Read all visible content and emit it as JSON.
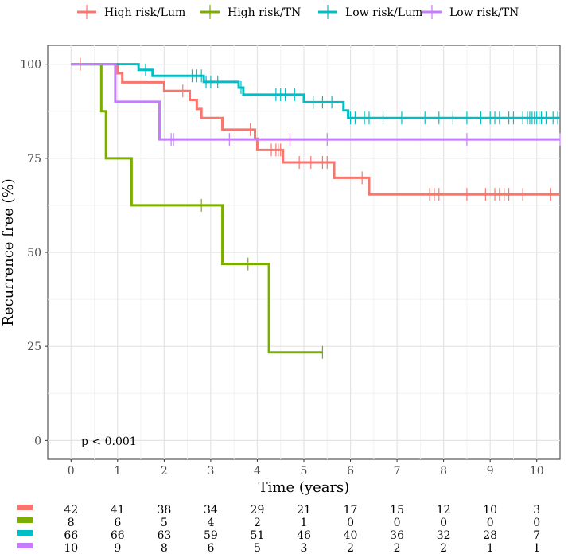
{
  "chart_data": {
    "type": "line",
    "subtype": "kaplan-meier",
    "title": "",
    "xlabel": "Time (years)",
    "ylabel": "Recurrence free (%)",
    "xlim": [
      -0.5,
      10.5
    ],
    "ylim": [
      -5,
      105
    ],
    "xticks": [
      0,
      1,
      2,
      3,
      4,
      5,
      6,
      7,
      8,
      9,
      10
    ],
    "yticks": [
      0,
      25,
      50,
      75,
      100
    ],
    "grid": true,
    "legend_position": "top",
    "annotation": "p < 0.001",
    "series": [
      {
        "name": "High risk/Lum",
        "color": "#F8766D",
        "steps": [
          [
            0,
            100
          ],
          [
            1.0,
            97.6
          ],
          [
            1.1,
            95.2
          ],
          [
            2.0,
            92.9
          ],
          [
            2.55,
            90.5
          ],
          [
            2.7,
            88.1
          ],
          [
            2.8,
            85.7
          ],
          [
            3.25,
            82.6
          ],
          [
            3.95,
            80.2
          ],
          [
            4.0,
            77.2
          ],
          [
            4.55,
            73.9
          ],
          [
            5.65,
            69.8
          ],
          [
            6.4,
            65.4
          ],
          [
            10.5,
            65.4
          ]
        ],
        "censor_times": [
          0.2,
          2.4,
          3.85,
          4.3,
          4.4,
          4.45,
          4.5,
          4.9,
          5.15,
          5.4,
          5.5,
          6.25,
          7.7,
          7.8,
          7.9,
          8.5,
          8.9,
          9.1,
          9.2,
          9.3,
          9.4,
          9.7,
          10.3
        ]
      },
      {
        "name": "High risk/TN",
        "color": "#7CAE00",
        "steps": [
          [
            0,
            100
          ],
          [
            0.65,
            87.5
          ],
          [
            0.75,
            75.0
          ],
          [
            1.3,
            62.5
          ],
          [
            3.25,
            46.9
          ],
          [
            4.25,
            23.4
          ],
          [
            5.4,
            23.4
          ]
        ],
        "censor_times": [
          2.8,
          3.8,
          5.4
        ]
      },
      {
        "name": "Low risk/Lum",
        "color": "#00BFC4",
        "steps": [
          [
            0,
            100
          ],
          [
            1.45,
            98.5
          ],
          [
            1.75,
            96.9
          ],
          [
            2.85,
            95.3
          ],
          [
            3.6,
            93.8
          ],
          [
            3.7,
            91.9
          ],
          [
            5.0,
            89.9
          ],
          [
            5.85,
            87.7
          ],
          [
            5.95,
            85.7
          ],
          [
            10.5,
            85.7
          ]
        ],
        "censor_times": [
          1.6,
          2.6,
          2.7,
          2.8,
          2.9,
          3.0,
          3.15,
          3.65,
          4.4,
          4.5,
          4.6,
          4.8,
          5.2,
          5.4,
          5.6,
          6.0,
          6.1,
          6.3,
          6.4,
          6.7,
          7.1,
          7.6,
          7.9,
          8.2,
          8.5,
          8.8,
          9.0,
          9.1,
          9.2,
          9.4,
          9.5,
          9.7,
          9.8,
          9.85,
          9.9,
          9.95,
          10.0,
          10.05,
          10.1,
          10.2,
          10.35,
          10.45
        ]
      },
      {
        "name": "Low risk/TN",
        "color": "#C77CFF",
        "steps": [
          [
            0,
            100
          ],
          [
            0.95,
            90.0
          ],
          [
            1.9,
            80.0
          ],
          [
            10.5,
            80.0
          ]
        ],
        "censor_times": [
          2.15,
          2.2,
          3.4,
          4.7,
          5.5,
          8.5,
          10.5
        ]
      }
    ],
    "risk_table": {
      "times": [
        0,
        1,
        2,
        3,
        4,
        5,
        6,
        7,
        8,
        9,
        10
      ],
      "rows": [
        {
          "name": "High risk/Lum",
          "color": "#F8766D",
          "values": [
            42,
            41,
            38,
            34,
            29,
            21,
            17,
            15,
            12,
            10,
            3
          ]
        },
        {
          "name": "High risk/TN",
          "color": "#7CAE00",
          "values": [
            8,
            6,
            5,
            4,
            2,
            1,
            0,
            0,
            0,
            0,
            0
          ]
        },
        {
          "name": "Low risk/Lum",
          "color": "#00BFC4",
          "values": [
            66,
            66,
            63,
            59,
            51,
            46,
            40,
            36,
            32,
            28,
            7
          ]
        },
        {
          "name": "Low risk/TN",
          "color": "#C77CFF",
          "values": [
            10,
            9,
            8,
            6,
            5,
            3,
            2,
            2,
            2,
            1,
            1
          ]
        }
      ]
    }
  }
}
